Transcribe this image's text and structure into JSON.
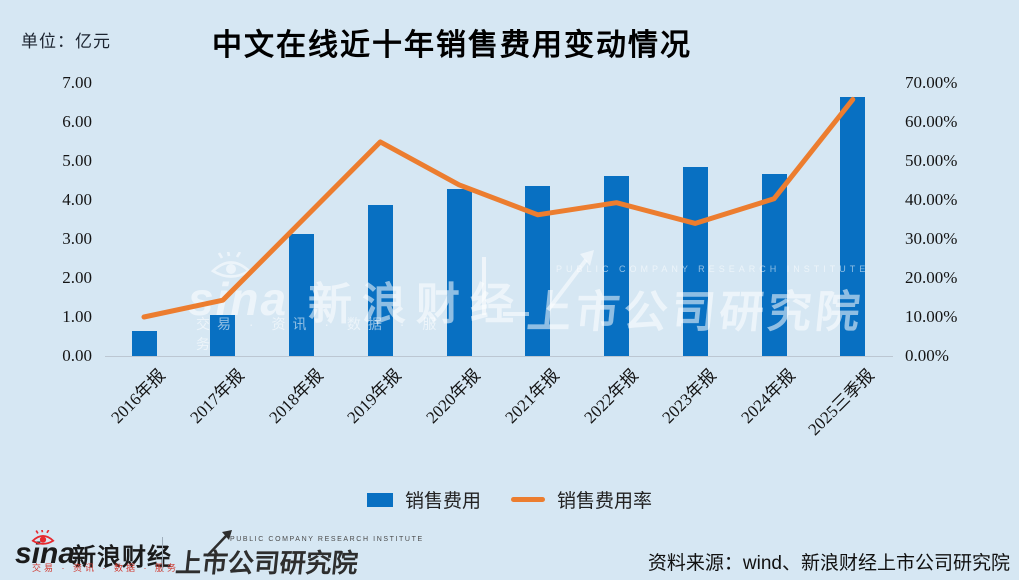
{
  "header": {
    "unit_label": "单位：亿元",
    "title": "中文在线近十年销售费用变动情况"
  },
  "chart_data": {
    "type": "bar",
    "title": "中文在线近十年销售费用变动情况",
    "categories": [
      "2016年报",
      "2017年报",
      "2018年报",
      "2019年报",
      "2020年报",
      "2021年报",
      "2022年报",
      "2023年报",
      "2024年报",
      "2025三季报"
    ],
    "series": [
      {
        "name": "销售费用",
        "type": "bar",
        "axis": "left",
        "unit": "亿元",
        "values": [
          0.63,
          1.05,
          3.13,
          3.87,
          4.29,
          4.35,
          4.62,
          4.85,
          4.66,
          6.65
        ]
      },
      {
        "name": "销售费用率",
        "type": "line",
        "axis": "right",
        "unit": "%",
        "values": [
          10.0,
          14.3,
          34.6,
          54.9,
          43.9,
          36.2,
          39.3,
          34.0,
          40.3,
          65.8
        ]
      }
    ],
    "left_axis": {
      "min": 0,
      "max": 7,
      "step": 1,
      "ticks": [
        "7.00",
        "6.00",
        "5.00",
        "4.00",
        "3.00",
        "2.00",
        "1.00",
        "0.00"
      ]
    },
    "right_axis": {
      "min": 0,
      "max": 70,
      "step": 10,
      "ticks": [
        "70.00%",
        "60.00%",
        "50.00%",
        "40.00%",
        "30.00%",
        "20.00%",
        "10.00%",
        "0.00%"
      ]
    },
    "grid": false,
    "legend_position": "bottom"
  },
  "legend": {
    "items": [
      {
        "label": "销售费用",
        "swatch": "bar"
      },
      {
        "label": "销售费用率",
        "swatch": "line"
      }
    ]
  },
  "watermark": {
    "sina_text": "sina",
    "finance_text": "新浪财经",
    "tagline": "交易 · 资讯 · 数据 · 服务",
    "institute_caps": "PUBLIC COMPANY RESEARCH INSTITUTE",
    "institute_text": "上市公司研究院"
  },
  "footer": {
    "sina_logo": {
      "sina": "sina",
      "finance": "新浪财经",
      "tagline": "交易 · 资讯 · 数据 · 服务"
    },
    "institute_logo": {
      "caps": "PUBLIC COMPANY RESEARCH INSTITUTE",
      "name": "上市公司研究院"
    },
    "source": "资料来源：wind、新浪财经上市公司研究院"
  },
  "colors": {
    "background": "#D6E7F3",
    "bar": "#0870C2",
    "line": "#EC7D2F",
    "axis_text": "#141414",
    "title_text": "#000000",
    "sina_red": "#E6292F",
    "source_text": "#111111"
  }
}
